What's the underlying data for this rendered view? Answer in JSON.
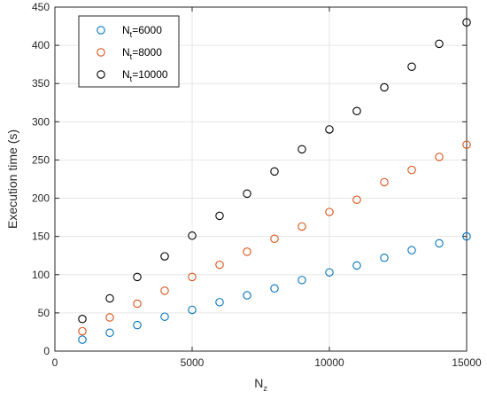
{
  "chart_data": {
    "type": "scatter",
    "title": "",
    "xlabel": "N",
    "xlabel_sub": "z",
    "ylabel": "Execution time (s)",
    "xlim": [
      0,
      15000
    ],
    "ylim": [
      0,
      450
    ],
    "xticks": [
      0,
      5000,
      10000,
      15000
    ],
    "yticks": [
      0,
      50,
      100,
      150,
      200,
      250,
      300,
      350,
      400,
      450
    ],
    "grid": true,
    "legend_position": "top-left",
    "x": [
      1000,
      2000,
      3000,
      4000,
      5000,
      6000,
      7000,
      8000,
      9000,
      10000,
      11000,
      12000,
      13000,
      14000,
      15000
    ],
    "series": [
      {
        "name": "N",
        "name_sub": "t",
        "name_suffix": "=6000",
        "color": "#0072BD",
        "values": [
          15,
          24,
          34,
          45,
          54,
          64,
          73,
          82,
          93,
          103,
          112,
          122,
          132,
          141,
          150
        ]
      },
      {
        "name": "N",
        "name_sub": "t",
        "name_suffix": "=8000",
        "color": "#D95319",
        "values": [
          26,
          44,
          62,
          79,
          97,
          113,
          130,
          147,
          163,
          182,
          198,
          221,
          237,
          254,
          270
        ]
      },
      {
        "name": "N",
        "name_sub": "t",
        "name_suffix": "=10000",
        "color": "#000000",
        "values": [
          42,
          69,
          97,
          124,
          151,
          177,
          206,
          235,
          264,
          290,
          314,
          345,
          372,
          402,
          430
        ]
      }
    ]
  }
}
